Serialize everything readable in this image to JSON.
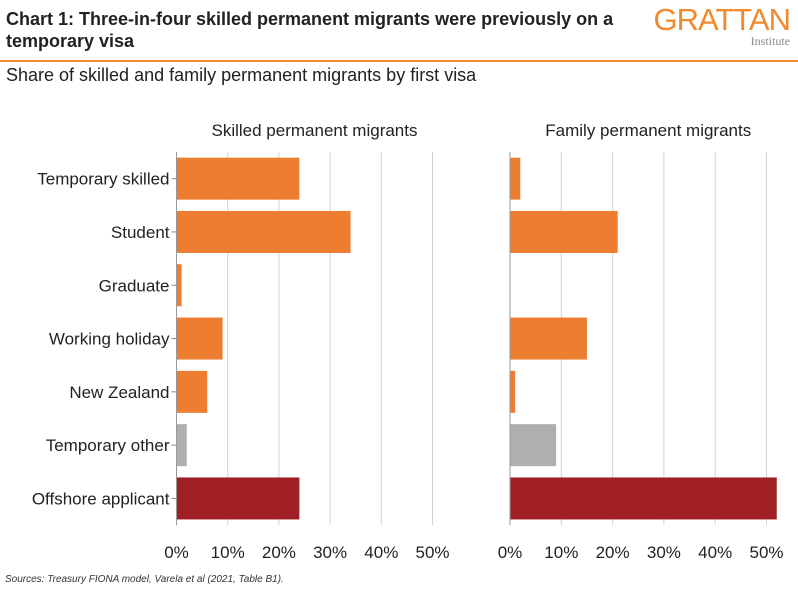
{
  "header": {
    "title": "Chart 1: Three-in-four skilled permanent migrants were previously on a temporary visa",
    "subtitle": "Share of skilled and family permanent migrants by first visa",
    "logo_word": "GRATTAN",
    "logo_sub": "Institute"
  },
  "footer": {
    "source": "Sources: Treasury FIONA model, Varela et al (2021, Table B1)."
  },
  "colors": {
    "orange": "#ed7d31",
    "grey": "#afafaf",
    "darkred": "#a01f25",
    "accent": "#f08a2c"
  },
  "chart_data": [
    {
      "type": "bar",
      "orientation": "horizontal",
      "title": "Skilled permanent migrants",
      "categories": [
        "Temporary skilled",
        "Student",
        "Graduate",
        "Working holiday",
        "New Zealand",
        "Temporary other",
        "Offshore applicant"
      ],
      "values": [
        24,
        34,
        1,
        9,
        6,
        2,
        24
      ],
      "bar_colors": [
        "orange",
        "orange",
        "orange",
        "orange",
        "orange",
        "grey",
        "darkred"
      ],
      "xlim": [
        0,
        50
      ],
      "xticks": [
        "0%",
        "10%",
        "20%",
        "30%",
        "40%",
        "50%"
      ],
      "grid": true
    },
    {
      "type": "bar",
      "orientation": "horizontal",
      "title": "Family permanent migrants",
      "categories": [
        "Temporary skilled",
        "Student",
        "Graduate",
        "Working holiday",
        "New Zealand",
        "Temporary other",
        "Offshore applicant"
      ],
      "values": [
        2,
        21,
        0,
        15,
        1,
        9,
        52
      ],
      "bar_colors": [
        "orange",
        "orange",
        "orange",
        "orange",
        "orange",
        "grey",
        "darkred"
      ],
      "xlim": [
        0,
        50
      ],
      "xticks": [
        "0%",
        "10%",
        "20%",
        "30%",
        "40%",
        "50%"
      ],
      "grid": true
    }
  ]
}
